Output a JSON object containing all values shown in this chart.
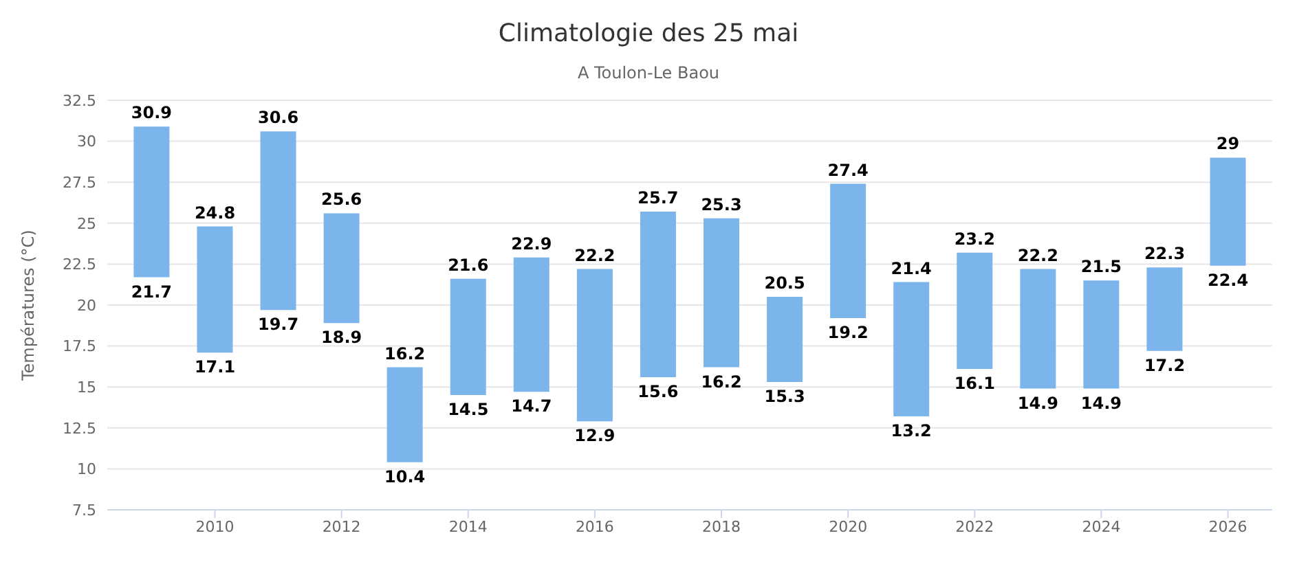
{
  "chart_data": {
    "type": "bar",
    "title": "Climatologie des 25 mai",
    "subtitle": "A Toulon-Le Baou",
    "ylabel": "Températures (°C)",
    "x": [
      2009,
      2010,
      2011,
      2012,
      2013,
      2014,
      2015,
      2016,
      2017,
      2018,
      2019,
      2020,
      2021,
      2022,
      2023,
      2024,
      2025,
      2026
    ],
    "base": [
      21.7,
      17.1,
      19.7,
      18.9,
      10.4,
      14.5,
      14.7,
      12.9,
      15.6,
      16.2,
      15.3,
      19.2,
      13.2,
      16.1,
      14.9,
      14.9,
      17.2,
      22.4
    ],
    "values": [
      9.2,
      7.7,
      10.9,
      6.7,
      5.8,
      7.1,
      8.2,
      9.3,
      10.1,
      9.1,
      5.2,
      8.2,
      8.2,
      7.1,
      7.3,
      6.6,
      5.1,
      6.6
    ],
    "color": "#7cb5ec",
    "xlim": [
      2008.3,
      2026.7
    ],
    "xticks": [
      2010,
      2012,
      2014,
      2016,
      2018,
      2020,
      2022,
      2024,
      2026
    ],
    "ylim": [
      7.5,
      32.5
    ],
    "yticks": [
      7.5,
      10,
      12.5,
      15,
      17.5,
      20,
      22.5,
      25,
      27.5,
      30,
      32.5
    ],
    "grid": "y",
    "legend": false,
    "annotations": [
      {
        "text": "30.9",
        "x": 2009,
        "y": 30.9
      },
      {
        "text": "21.7",
        "x": 2009,
        "y": 21.7
      },
      {
        "text": "24.8",
        "x": 2010,
        "y": 24.8
      },
      {
        "text": "17.1",
        "x": 2010,
        "y": 17.1
      },
      {
        "text": "30.6",
        "x": 2011,
        "y": 30.6
      },
      {
        "text": "19.7",
        "x": 2011,
        "y": 19.7
      },
      {
        "text": "25.6",
        "x": 2012,
        "y": 25.6
      },
      {
        "text": "18.9",
        "x": 2012,
        "y": 18.9
      },
      {
        "text": "16.2",
        "x": 2013,
        "y": 16.2
      },
      {
        "text": "10.4",
        "x": 2013,
        "y": 10.4
      },
      {
        "text": "21.6",
        "x": 2014,
        "y": 21.6
      },
      {
        "text": "14.5",
        "x": 2014,
        "y": 14.5
      },
      {
        "text": "22.9",
        "x": 2015,
        "y": 22.9
      },
      {
        "text": "14.7",
        "x": 2015,
        "y": 14.7
      },
      {
        "text": "22.2",
        "x": 2016,
        "y": 22.2
      },
      {
        "text": "12.9",
        "x": 2016,
        "y": 12.9
      },
      {
        "text": "25.7",
        "x": 2017,
        "y": 25.7
      },
      {
        "text": "15.6",
        "x": 2017,
        "y": 15.6
      },
      {
        "text": "25.3",
        "x": 2018,
        "y": 25.3
      },
      {
        "text": "16.2",
        "x": 2018,
        "y": 16.2
      },
      {
        "text": "20.5",
        "x": 2019,
        "y": 20.5
      },
      {
        "text": "15.3",
        "x": 2019,
        "y": 15.3
      },
      {
        "text": "27.4",
        "x": 2020,
        "y": 27.4
      },
      {
        "text": "19.2",
        "x": 2020,
        "y": 19.2
      },
      {
        "text": "21.4",
        "x": 2021,
        "y": 21.4
      },
      {
        "text": "13.2",
        "x": 2021,
        "y": 13.2
      },
      {
        "text": "23.2",
        "x": 2022,
        "y": 23.2
      },
      {
        "text": "16.1",
        "x": 2022,
        "y": 16.1
      },
      {
        "text": "22.2",
        "x": 2023,
        "y": 22.2
      },
      {
        "text": "14.9",
        "x": 2023,
        "y": 14.9
      },
      {
        "text": "21.5",
        "x": 2024,
        "y": 21.5
      },
      {
        "text": "14.9",
        "x": 2024,
        "y": 14.9
      },
      {
        "text": "22.3",
        "x": 2025,
        "y": 22.3
      },
      {
        "text": "17.2",
        "x": 2025,
        "y": 17.2
      },
      {
        "text": "29",
        "x": 2026,
        "y": 29
      },
      {
        "text": "22.4",
        "x": 2026,
        "y": 22.4
      }
    ]
  }
}
